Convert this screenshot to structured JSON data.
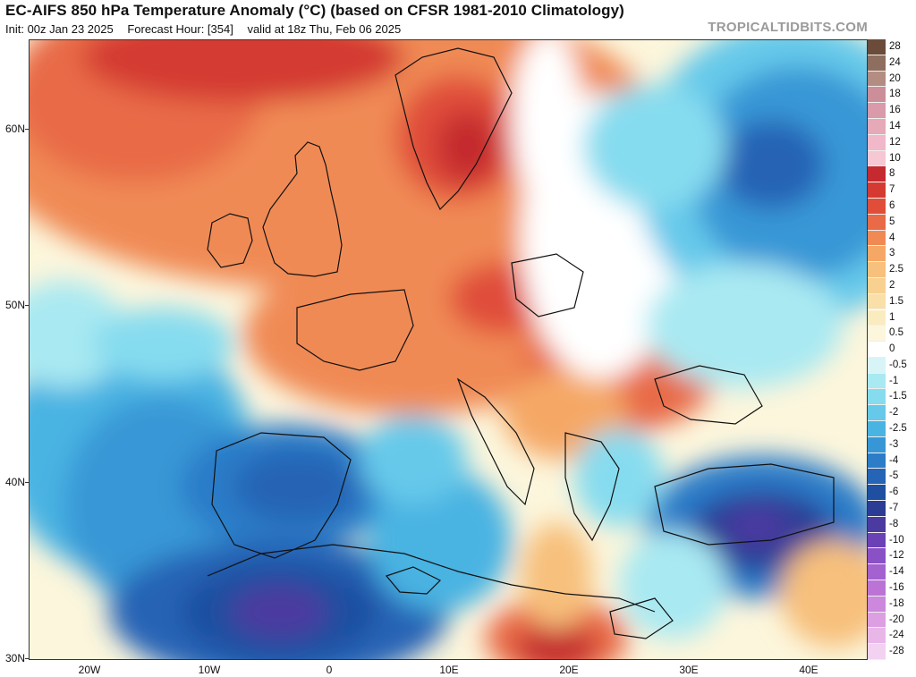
{
  "header": {
    "title": "EC-AIFS 850 hPa Temperature Anomaly (°C) (based on CFSR 1981-2010 Climatology)",
    "init": "Init: 00z Jan 23 2025",
    "forecast_hour": "Forecast Hour: [354]",
    "valid": "valid at 18z Thu, Feb 06 2025",
    "brand": "TROPICALTIDBITS.COM"
  },
  "axes": {
    "lat_labels": [
      "60N",
      "50N",
      "40N",
      "30N"
    ],
    "lon_labels": [
      "20W",
      "10W",
      "0",
      "10E",
      "20E",
      "30E",
      "40E"
    ]
  },
  "legend": {
    "labels": [
      "28",
      "24",
      "20",
      "18",
      "16",
      "14",
      "12",
      "10",
      "8",
      "7",
      "6",
      "5",
      "4",
      "3",
      "2.5",
      "2",
      "1.5",
      "1",
      "0.5",
      "0",
      "-0.5",
      "-1",
      "-1.5",
      "-2",
      "-2.5",
      "-3",
      "-4",
      "-5",
      "-6",
      "-7",
      "-8",
      "-10",
      "-12",
      "-14",
      "-16",
      "-18",
      "-20",
      "-24",
      "-28"
    ],
    "colors": [
      "#6b4b3a",
      "#8e6e5e",
      "#b38c82",
      "#cc8f9a",
      "#d99aaa",
      "#e6a9b8",
      "#f0b8c8",
      "#f5c8d4",
      "#c42a2f",
      "#d43a32",
      "#e04e3a",
      "#e86a46",
      "#f08a55",
      "#f5a866",
      "#f7c07c",
      "#f8d08f",
      "#fae0a8",
      "#fbecc0",
      "#fcf6dc",
      "#ffffff",
      "#d8f4f7",
      "#a9e9f2",
      "#86dcef",
      "#66c9ea",
      "#49b3e2",
      "#3797d6",
      "#2c7cc8",
      "#2664b5",
      "#1f4fa0",
      "#2b3c95",
      "#4b3aa0",
      "#6a42b6",
      "#8a50c6",
      "#a362cf",
      "#bb74d6",
      "#cc88dc",
      "#dc9fe2",
      "#e8b7e8",
      "#f2d2f0"
    ]
  },
  "map_meta": {
    "variable": "850 hPa temperature anomaly",
    "units": "°C",
    "region": "Europe / North Africa",
    "lon_range": [
      -25,
      45
    ],
    "lat_range": [
      30,
      65
    ],
    "warm_regions": [
      "North Sea",
      "Scandinavia",
      "Central Europe",
      "Romania",
      "Libya"
    ],
    "cold_regions": [
      "Iberia",
      "North Africa",
      "Turkey",
      "Russia",
      "Atlantic west of Iberia"
    ]
  }
}
